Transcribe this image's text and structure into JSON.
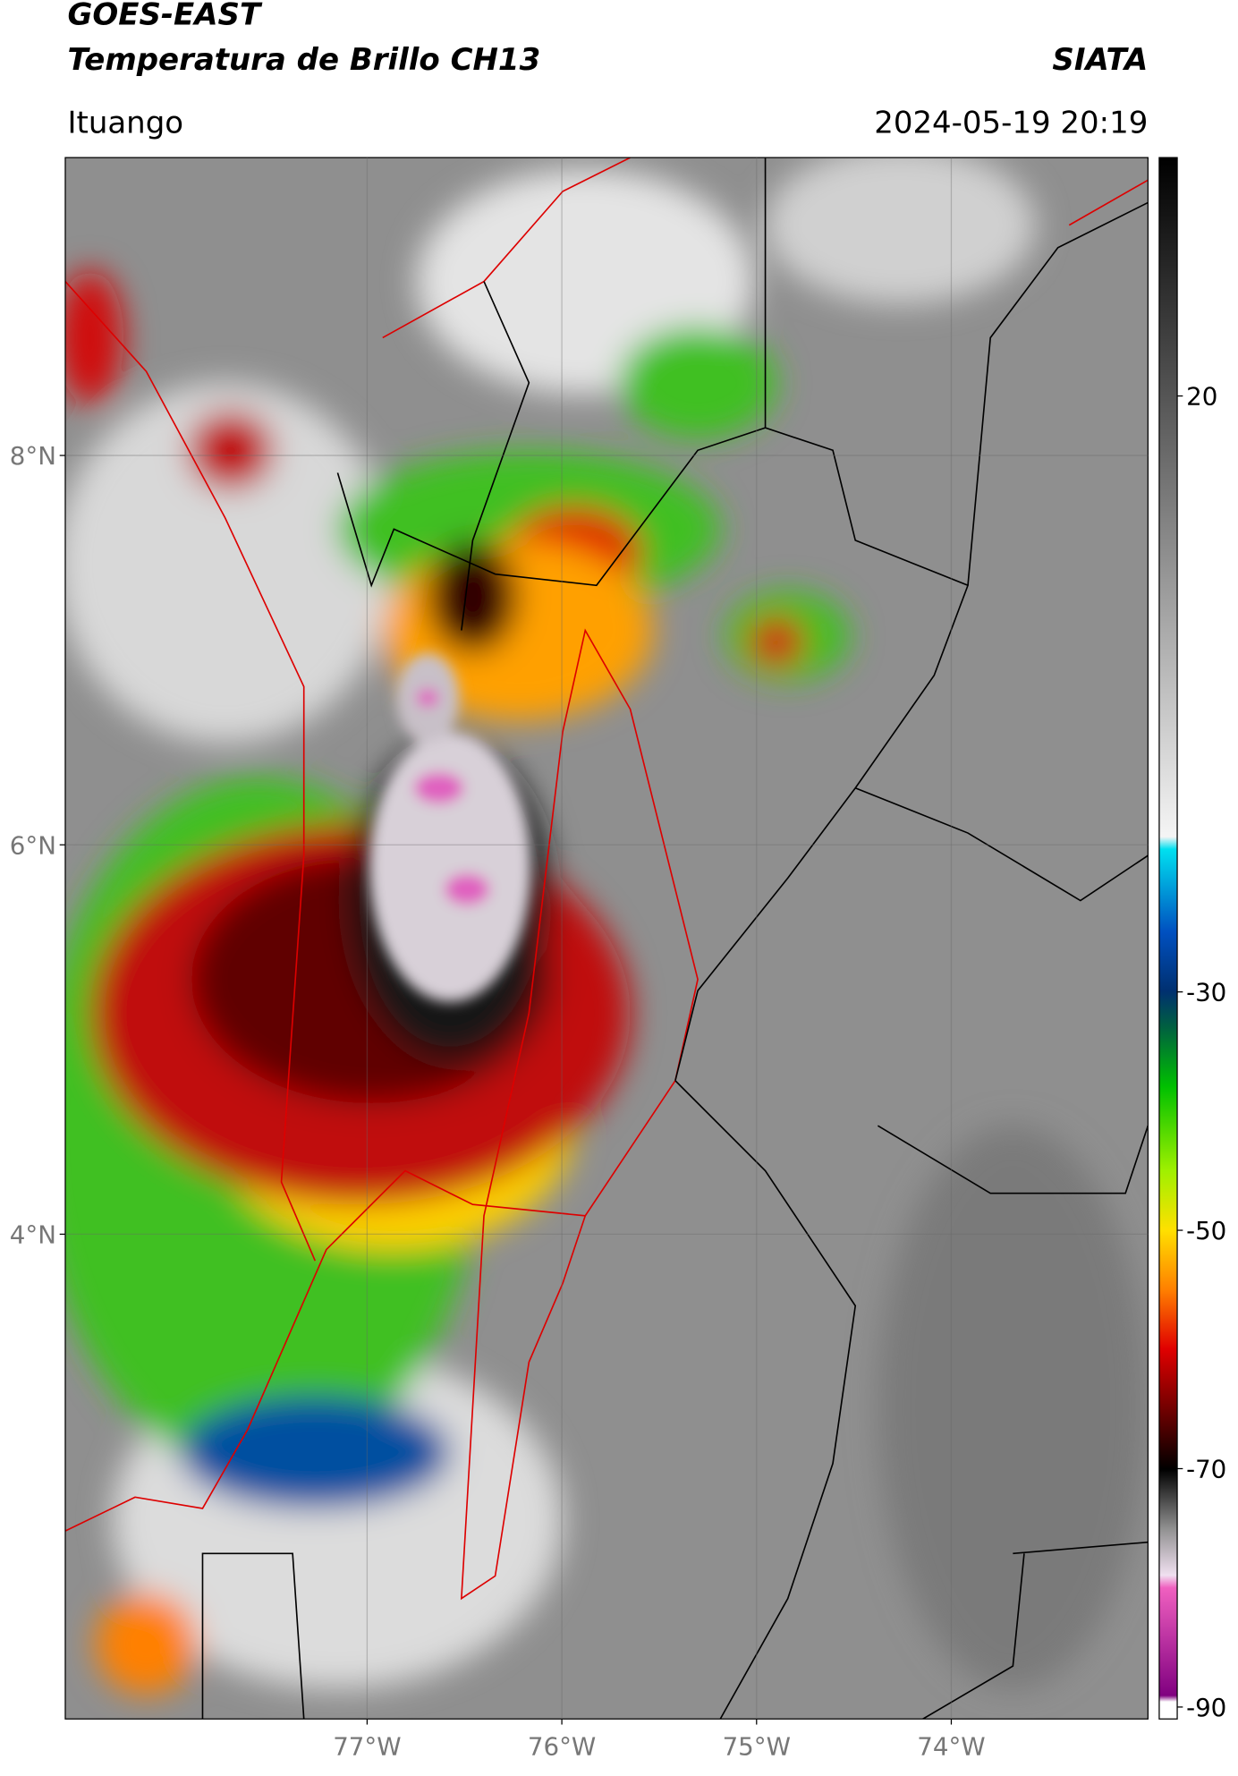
{
  "header": {
    "source": "GOES-EAST",
    "product": "Temperatura de Brillo CH13",
    "brand": "SIATA",
    "location": "Ituango",
    "datetime": "2024-05-19 20:19"
  },
  "map": {
    "latlim": [
      1.51,
      9.53
    ],
    "lonlim": [
      -78.55,
      -72.99
    ],
    "grid": true,
    "lat_ticks": [
      {
        "value": 8,
        "label": "8°N"
      },
      {
        "value": 6,
        "label": "6°N"
      },
      {
        "value": 4,
        "label": "4°N"
      }
    ],
    "lon_ticks": [
      {
        "value": -77,
        "label": "77°W"
      },
      {
        "value": -76,
        "label": "76°W"
      },
      {
        "value": -75,
        "label": "75°W"
      },
      {
        "value": -74,
        "label": "74°W"
      }
    ]
  },
  "colorbar": {
    "lim": [
      -91,
      40
    ],
    "ticks": [
      20,
      -30,
      -50,
      -70,
      -90
    ]
  }
}
